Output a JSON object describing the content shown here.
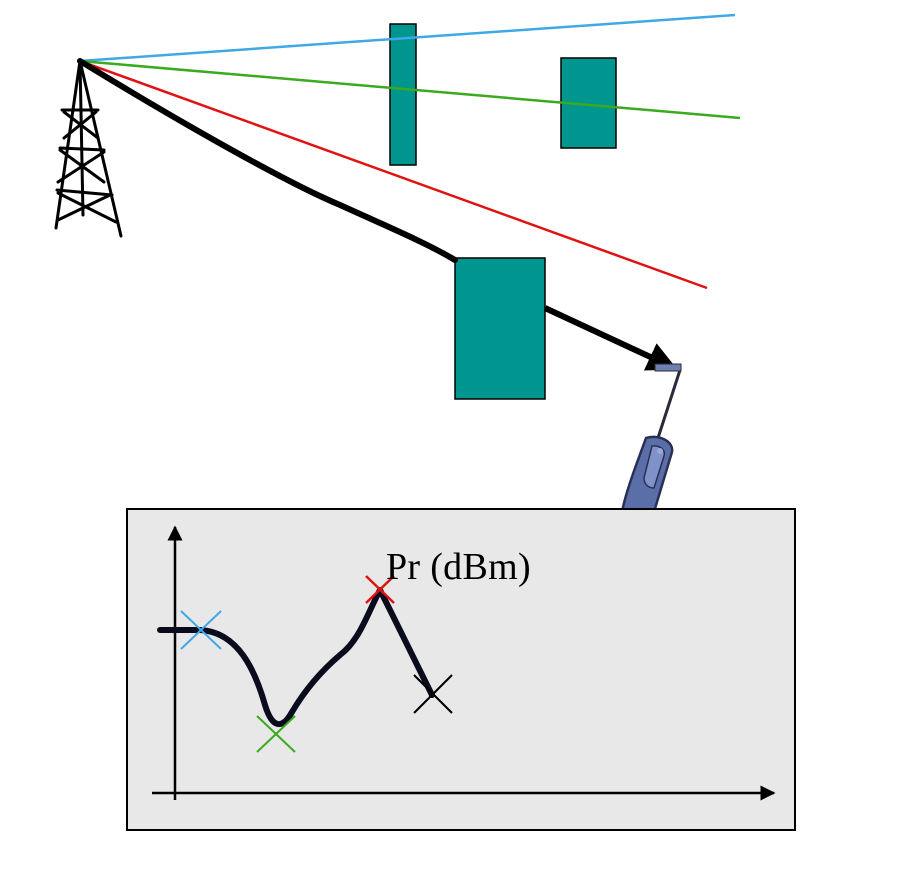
{
  "diagram": {
    "graph": {
      "y_axis_label": "Pr (dBm)"
    },
    "colors": {
      "obstacle": "#009690",
      "obstacle_border": "#000000",
      "ray_blue": "#3fa9e6",
      "ray_green": "#3aaa1f",
      "ray_red": "#e01313",
      "ray_direct": "#000000",
      "panel_background": "#e8e8e8",
      "panel_border": "#000000",
      "curve": "#0b0b1e",
      "marker_blue": "#3fa9e6",
      "marker_green": "#3aaa1f",
      "marker_red": "#e01313",
      "marker_black": "#000000",
      "phone_body": "#5a6fa8"
    },
    "icons": {
      "transmitter": "antenna-tower-icon",
      "receiver": "mobile-phone-icon"
    }
  }
}
